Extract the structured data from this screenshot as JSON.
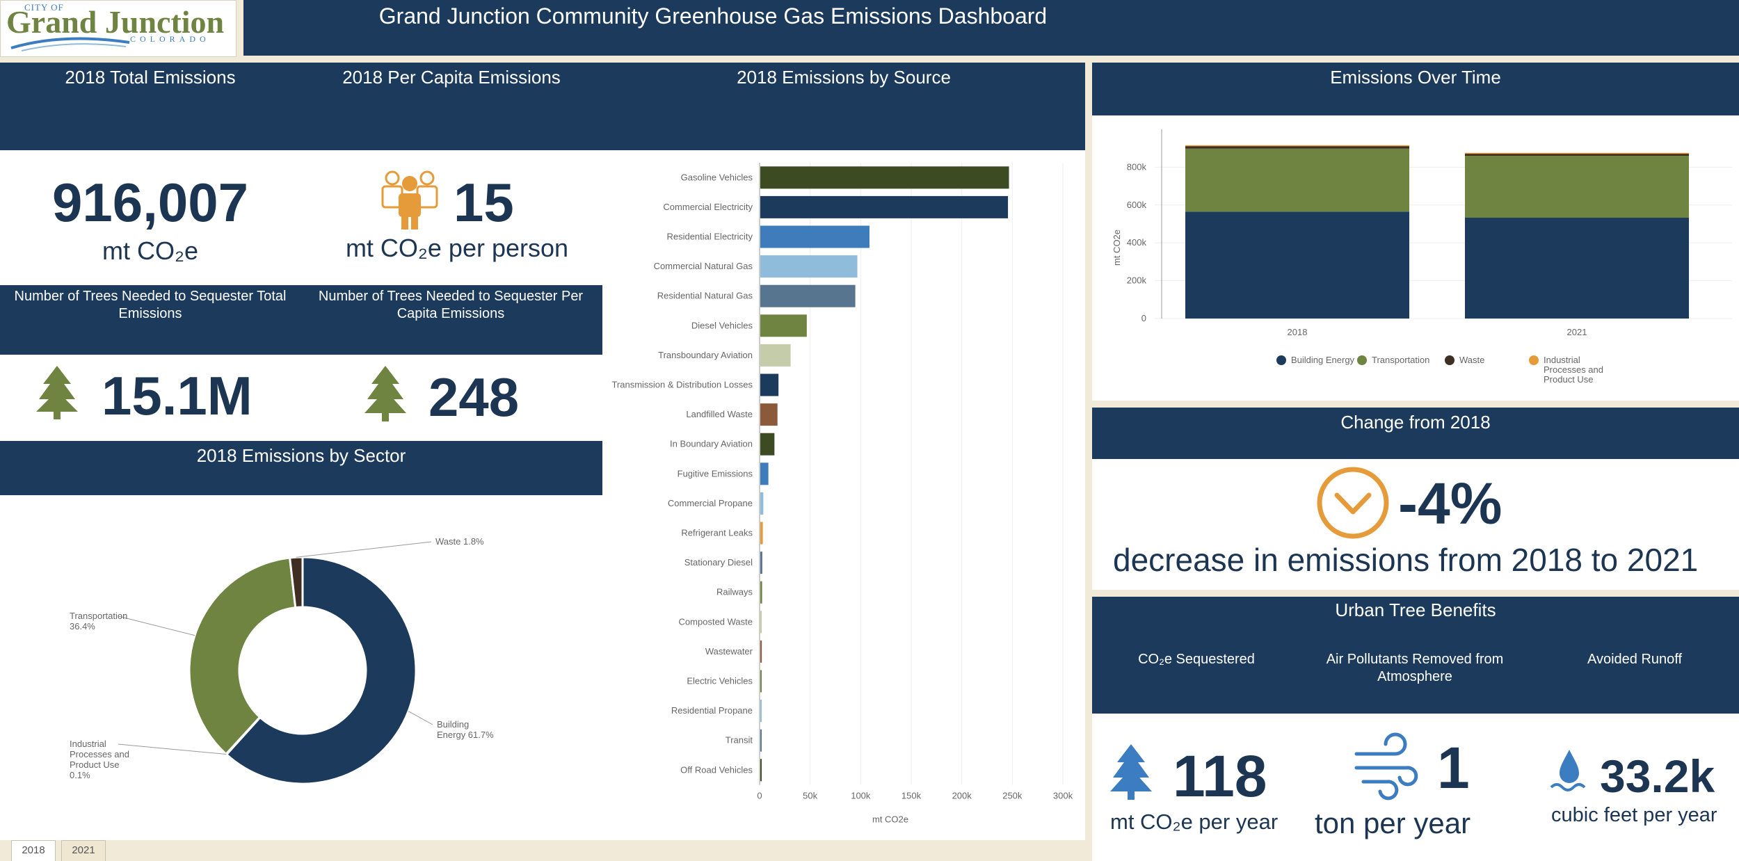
{
  "logo": {
    "top_text": "CITY OF",
    "main_text": "Grand Junction",
    "sub_text": "COLORADO"
  },
  "header": {
    "title": "Grand Junction Community Greenhouse Gas Emissions Dashboard"
  },
  "total_emissions": {
    "title": "2018 Total Emissions",
    "value": "916,007",
    "unit": "mt CO₂e"
  },
  "per_capita": {
    "title": "2018 Per Capita Emissions",
    "value": "15",
    "unit": "mt CO₂e per person"
  },
  "trees_total": {
    "title": "Number of Trees Needed to Sequester Total Emissions",
    "value": "15.1M"
  },
  "trees_per_capita": {
    "title": "Number of Trees Needed to Sequester Per Capita Emissions",
    "value": "248"
  },
  "sector": {
    "title": "2018 Emissions by Sector"
  },
  "source": {
    "title": "2018 Emissions by Source"
  },
  "over_time": {
    "title": "Emissions Over Time"
  },
  "change": {
    "title": "Change from 2018",
    "value": "-4%",
    "text": "decrease in emissions from 2018 to 2021"
  },
  "urban_trees": {
    "title": "Urban Tree Benefits",
    "cols": [
      {
        "label": "CO₂e Sequestered",
        "value": "118",
        "unit": "mt CO₂e per year"
      },
      {
        "label": "Air Pollutants Removed from Atmosphere",
        "value": "1",
        "unit": "ton per year"
      },
      {
        "label": "Avoided Runoff",
        "value": "33.2k",
        "unit": "cubic feet per year"
      }
    ]
  },
  "tabs": [
    "2018",
    "2021"
  ],
  "colors": {
    "navy": "#1b3a5c",
    "green": "#6e8440",
    "dark_brown": "#3f2e22",
    "orange": "#e69b3a",
    "tree_green": "#6e8440",
    "blue_icon": "#3c7cc0"
  },
  "chart_data": [
    {
      "type": "pie",
      "title": "2018 Emissions by Sector",
      "slices": [
        {
          "label": "Building Energy",
          "pct_label": "61.7%",
          "value": 61.7,
          "color": "#1b3a5c"
        },
        {
          "label": "Industrial Processes and Product Use",
          "pct_label": "0.1%",
          "value": 0.1,
          "color": "#e69b3a"
        },
        {
          "label": "Transportation",
          "pct_label": "36.4%",
          "value": 36.4,
          "color": "#6e8440"
        },
        {
          "label": "Waste",
          "pct_label": "1.8%",
          "value": 1.8,
          "color": "#3f2e22"
        }
      ]
    },
    {
      "type": "bar",
      "title": "2018 Emissions by Source",
      "orientation": "horizontal",
      "xlabel": "mt CO2e",
      "xlim": [
        0,
        300000
      ],
      "x_ticks": [
        "0",
        "50k",
        "100k",
        "150k",
        "200k",
        "250k",
        "300k"
      ],
      "categories": [
        "Gasoline Vehicles",
        "Commercial Electricity",
        "Residential Electricity",
        "Commercial Natural Gas",
        "Residential Natural Gas",
        "Diesel Vehicles",
        "Transboundary Aviation",
        "Transmission & Distribution Losses",
        "Landfilled Waste",
        "In Boundary Aviation",
        "Fugitive Emissions",
        "Commercial Propane",
        "Refrigerant Leaks",
        "Stationary Diesel",
        "Railways",
        "Composted Waste",
        "Wastewater",
        "Electric Vehicles",
        "Residential Propane",
        "Transit",
        "Off Road Vehicles"
      ],
      "values": [
        246000,
        245000,
        108000,
        96000,
        94000,
        46000,
        30000,
        18000,
        17000,
        14000,
        8000,
        3000,
        2500,
        2000,
        1800,
        1200,
        1500,
        1200,
        1000,
        800,
        600
      ],
      "bar_colors": [
        "#3d4b22",
        "#1b3a5c",
        "#3f7cbc",
        "#90bcdc",
        "#587590",
        "#6e8440",
        "#c5ccaa",
        "#1b3a5c",
        "#8a5a3a",
        "#3d4b22",
        "#3f7cbc",
        "#90bcdc",
        "#e69b3a",
        "#587590",
        "#6e8440",
        "#c5ccaa",
        "#8a5a3a",
        "#6e8440",
        "#90bcdc",
        "#587590",
        "#3d4b22"
      ]
    },
    {
      "type": "bar",
      "title": "Emissions Over Time",
      "stacked": true,
      "ylabel": "mt CO2e",
      "ylim": [
        0,
        1000000
      ],
      "y_ticks": [
        "0",
        "200k",
        "400k",
        "600k",
        "800k"
      ],
      "categories": [
        "2018",
        "2021"
      ],
      "series": [
        {
          "name": "Building Energy",
          "color": "#1b3a5c",
          "values": [
            565000,
            533000
          ]
        },
        {
          "name": "Transportation",
          "color": "#6e8440",
          "values": [
            333000,
            327000
          ]
        },
        {
          "name": "Waste",
          "color": "#3f2e22",
          "values": [
            17000,
            15000
          ]
        },
        {
          "name": "Industrial Processes and Product Use",
          "color": "#e69b3a",
          "values": [
            1000,
            1000
          ]
        }
      ]
    }
  ]
}
